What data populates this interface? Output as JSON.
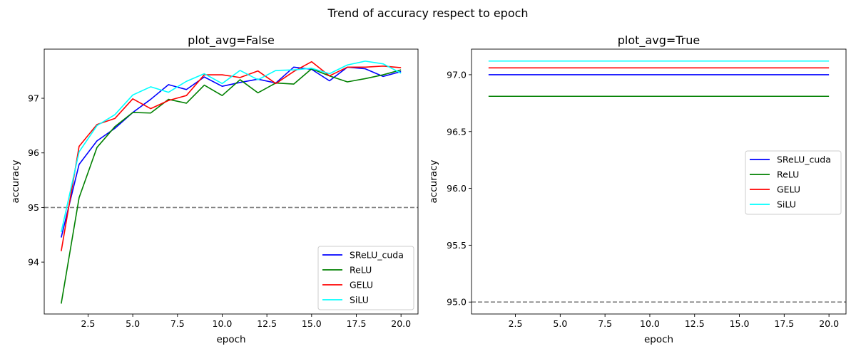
{
  "suptitle": "Trend of accuracy respect to epoch",
  "chart_data": [
    {
      "type": "line",
      "title": "plot_avg=False",
      "xlabel": "epoch",
      "ylabel": "accuracy",
      "xlim": [
        0.05,
        20.95
      ],
      "ylim": [
        93.05,
        97.9
      ],
      "xticks": [
        2.5,
        5.0,
        7.5,
        10.0,
        12.5,
        15.0,
        17.5,
        20.0
      ],
      "xtick_labels": [
        "2.5",
        "5.0",
        "7.5",
        "10.0",
        "12.5",
        "15.0",
        "17.5",
        "20.0"
      ],
      "yticks": [
        94,
        95,
        96,
        97
      ],
      "ytick_labels": [
        "94",
        "95",
        "96",
        "97"
      ],
      "hline": {
        "y": 95.0,
        "style": "dashed",
        "color": "#808080"
      },
      "legend": "lower-right",
      "grid": false,
      "x": [
        1,
        2,
        3,
        4,
        5,
        6,
        7,
        8,
        9,
        10,
        11,
        12,
        13,
        14,
        15,
        16,
        17,
        18,
        19,
        20
      ],
      "series": [
        {
          "name": "SReLU_cuda",
          "color": "#0000ff",
          "values": [
            94.45,
            95.79,
            96.22,
            96.45,
            96.74,
            96.98,
            97.25,
            97.16,
            97.39,
            97.22,
            97.29,
            97.35,
            97.28,
            97.57,
            97.53,
            97.32,
            97.57,
            97.54,
            97.4,
            97.49
          ]
        },
        {
          "name": "ReLU",
          "color": "#008000",
          "values": [
            93.24,
            95.18,
            96.1,
            96.48,
            96.74,
            96.73,
            96.98,
            96.91,
            97.24,
            97.05,
            97.34,
            97.1,
            97.28,
            97.26,
            97.54,
            97.41,
            97.3,
            97.36,
            97.43,
            97.52
          ]
        },
        {
          "name": "GELU",
          "color": "#ff0000",
          "values": [
            94.2,
            96.12,
            96.52,
            96.63,
            96.99,
            96.81,
            96.96,
            97.05,
            97.43,
            97.43,
            97.38,
            97.5,
            97.27,
            97.49,
            97.67,
            97.41,
            97.57,
            97.57,
            97.59,
            97.56
          ]
        },
        {
          "name": "SiLU",
          "color": "#00ffff",
          "values": [
            94.55,
            96.02,
            96.5,
            96.7,
            97.06,
            97.21,
            97.11,
            97.31,
            97.45,
            97.27,
            97.51,
            97.34,
            97.51,
            97.52,
            97.55,
            97.45,
            97.61,
            97.68,
            97.63,
            97.46
          ]
        }
      ]
    },
    {
      "type": "line",
      "title": "plot_avg=True",
      "xlabel": "epoch",
      "ylabel": "accuracy",
      "xlim": [
        0.05,
        20.95
      ],
      "ylim": [
        94.895,
        97.225
      ],
      "xticks": [
        2.5,
        5.0,
        7.5,
        10.0,
        12.5,
        15.0,
        17.5,
        20.0
      ],
      "xtick_labels": [
        "2.5",
        "5.0",
        "7.5",
        "10.0",
        "12.5",
        "15.0",
        "17.5",
        "20.0"
      ],
      "yticks": [
        95.0,
        95.5,
        96.0,
        96.5,
        97.0
      ],
      "ytick_labels": [
        "95.0",
        "95.5",
        "96.0",
        "96.5",
        "97.0"
      ],
      "hline": {
        "y": 95.0,
        "style": "dashed",
        "color": "#808080"
      },
      "legend": "center-right",
      "grid": false,
      "x": [
        1,
        20
      ],
      "series": [
        {
          "name": "SReLU_cuda",
          "color": "#0000ff",
          "values": [
            97.0,
            97.0
          ]
        },
        {
          "name": "ReLU",
          "color": "#008000",
          "values": [
            96.81,
            96.81
          ]
        },
        {
          "name": "GELU",
          "color": "#ff0000",
          "values": [
            97.06,
            97.06
          ]
        },
        {
          "name": "SiLU",
          "color": "#00ffff",
          "values": [
            97.12,
            97.12
          ]
        }
      ]
    }
  ]
}
